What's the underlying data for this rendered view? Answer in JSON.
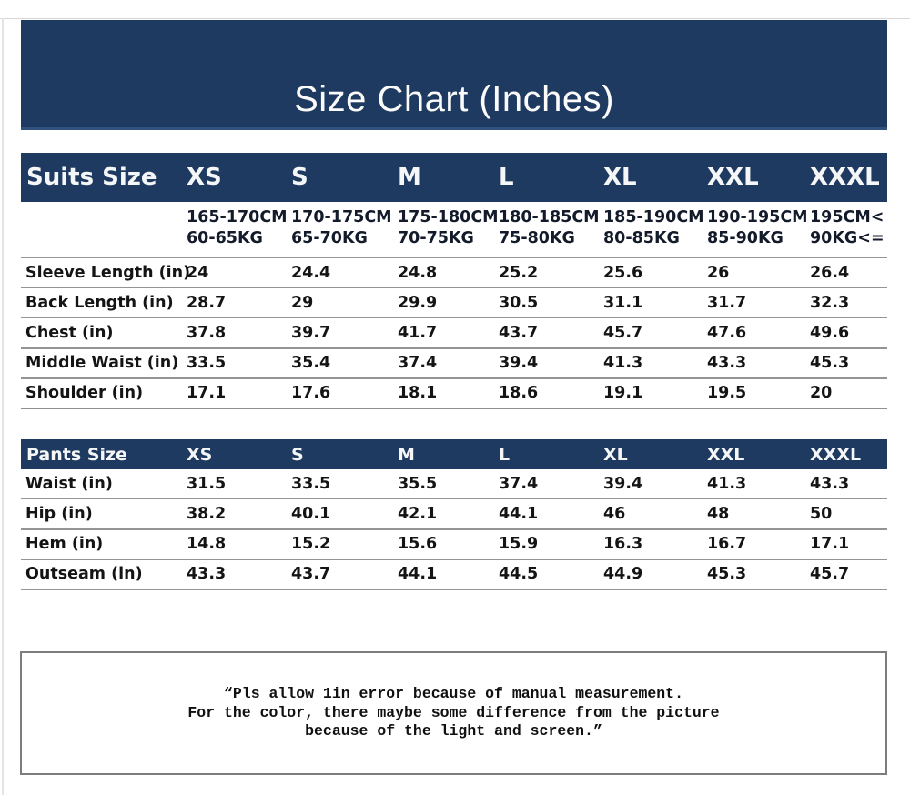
{
  "header": {
    "title": "Size Chart (Inches)"
  },
  "colors": {
    "navy_band": "#1f3a60",
    "band_edge": "#31527e",
    "row_line_gray": "#949494",
    "note_border_gray": "#7d7d7d",
    "body_text": "#141414",
    "header_text": "#f5f6f8"
  },
  "suits_table": {
    "title": "Suits Size",
    "sizes": [
      "XS",
      "S",
      "M",
      "L",
      "XL",
      "XXL",
      "XXXL"
    ],
    "ranges": [
      {
        "height": "165-170CM",
        "weight": "60-65KG"
      },
      {
        "height": "170-175CM",
        "weight": "65-70KG"
      },
      {
        "height": "175-180CM",
        "weight": "70-75KG"
      },
      {
        "height": "180-185CM",
        "weight": "75-80KG"
      },
      {
        "height": "185-190CM",
        "weight": "80-85KG"
      },
      {
        "height": "190-195CM",
        "weight": "85-90KG"
      },
      {
        "height": "195CM<",
        "weight": "90KG<="
      }
    ],
    "rows": [
      {
        "label": "Sleeve Length (in)",
        "values": [
          "24",
          "24.4",
          "24.8",
          "25.2",
          "25.6",
          "26",
          "26.4"
        ]
      },
      {
        "label": "Back Length (in)",
        "values": [
          "28.7",
          "29",
          "29.9",
          "30.5",
          "31.1",
          "31.7",
          "32.3"
        ]
      },
      {
        "label": "Chest (in)",
        "values": [
          "37.8",
          "39.7",
          "41.7",
          "43.7",
          "45.7",
          "47.6",
          "49.6"
        ]
      },
      {
        "label": "Middle Waist (in)",
        "values": [
          "33.5",
          "35.4",
          "37.4",
          "39.4",
          "41.3",
          "43.3",
          "45.3"
        ]
      },
      {
        "label": "Shoulder (in)",
        "values": [
          "17.1",
          "17.6",
          "18.1",
          "18.6",
          "19.1",
          "19.5",
          "20"
        ]
      }
    ]
  },
  "pants_table": {
    "title": "Pants Size",
    "sizes": [
      "XS",
      "S",
      "M",
      "L",
      "XL",
      "XXL",
      "XXXL"
    ],
    "rows": [
      {
        "label": "Waist (in)",
        "values": [
          "31.5",
          "33.5",
          "35.5",
          "37.4",
          "39.4",
          "41.3",
          "43.3"
        ]
      },
      {
        "label": "Hip (in)",
        "values": [
          "38.2",
          "40.1",
          "42.1",
          "44.1",
          "46",
          "48",
          "50"
        ]
      },
      {
        "label": "Hem (in)",
        "values": [
          "14.8",
          "15.2",
          "15.6",
          "15.9",
          "16.3",
          "16.7",
          "17.1"
        ]
      },
      {
        "label": "Outseam (in)",
        "values": [
          "43.3",
          "43.7",
          "44.1",
          "44.5",
          "44.9",
          "45.3",
          "45.7"
        ]
      }
    ]
  },
  "note": {
    "lines": [
      "“Pls allow 1in error because of manual measurement.",
      "For the color, there maybe some difference from the picture",
      "because of the light and screen.”"
    ]
  }
}
